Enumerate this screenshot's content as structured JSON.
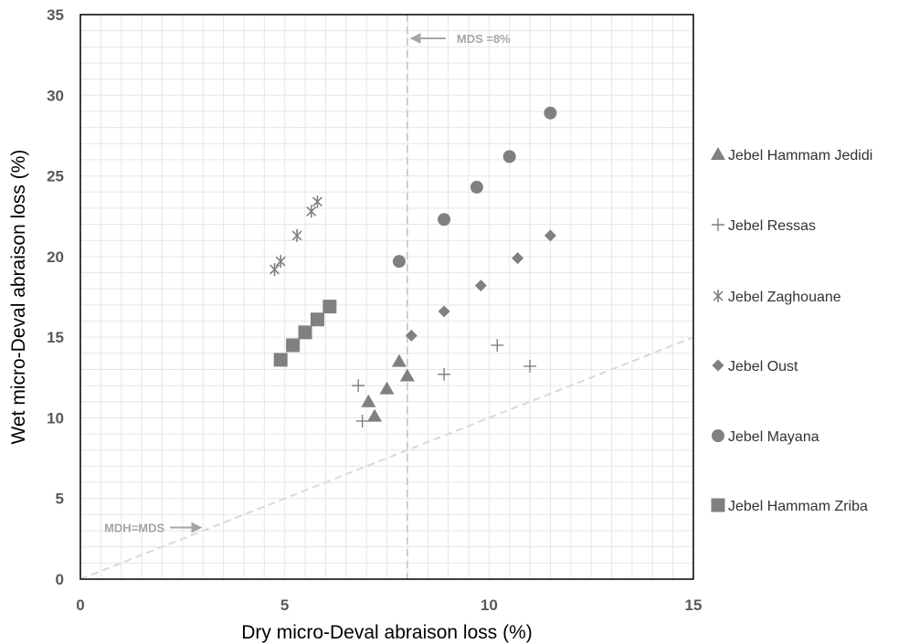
{
  "chart_data": {
    "type": "scatter",
    "xlabel": "Dry micro-Deval abraison loss (%)",
    "ylabel": "Wet micro-Deval abraison loss (%)",
    "xlim": [
      0,
      15
    ],
    "ylim": [
      0,
      35
    ],
    "xticks": [
      0,
      5,
      10,
      15
    ],
    "yticks": [
      0,
      5,
      10,
      15,
      20,
      25,
      30,
      35
    ],
    "grid": true,
    "legend_position": "right",
    "marker_color": "#808080",
    "series": [
      {
        "name": "Jebel Hammam Jedidi",
        "marker": "triangle",
        "points": [
          [
            7.2,
            10.1
          ],
          [
            7.05,
            11.0
          ],
          [
            7.5,
            11.8
          ],
          [
            7.8,
            13.5
          ],
          [
            8.0,
            12.6
          ]
        ]
      },
      {
        "name": "Jebel Ressas",
        "marker": "plus",
        "points": [
          [
            6.9,
            9.8
          ],
          [
            6.8,
            12.0
          ],
          [
            8.9,
            12.7
          ],
          [
            10.2,
            14.5
          ],
          [
            11.0,
            13.2
          ]
        ]
      },
      {
        "name": "Jebel Zaghouane",
        "marker": "asterisk",
        "points": [
          [
            4.75,
            19.2
          ],
          [
            4.9,
            19.7
          ],
          [
            5.3,
            21.3
          ],
          [
            5.65,
            22.8
          ],
          [
            5.8,
            23.4
          ]
        ]
      },
      {
        "name": "Jebel Oust",
        "marker": "diamond",
        "points": [
          [
            8.1,
            15.1
          ],
          [
            8.9,
            16.6
          ],
          [
            9.8,
            18.2
          ],
          [
            10.7,
            19.9
          ],
          [
            11.5,
            21.3
          ]
        ]
      },
      {
        "name": "Jebel Mayana",
        "marker": "circle",
        "points": [
          [
            7.8,
            19.7
          ],
          [
            8.9,
            22.3
          ],
          [
            9.7,
            24.3
          ],
          [
            10.5,
            26.2
          ],
          [
            11.5,
            28.9
          ]
        ]
      },
      {
        "name": "Jebel Hammam Zriba",
        "marker": "square",
        "points": [
          [
            4.9,
            13.6
          ],
          [
            5.2,
            14.5
          ],
          [
            5.5,
            15.3
          ],
          [
            5.8,
            16.1
          ],
          [
            6.1,
            16.9
          ]
        ]
      }
    ],
    "annotations": [
      {
        "text": "MDS =8%",
        "line": "vertical",
        "x": 8
      },
      {
        "text": "MDH=MDS",
        "line": "diagonal",
        "x_start": 0,
        "y_start": 0,
        "x_end": 15,
        "y_end": 15,
        "arrow_to_x": 3,
        "arrow_to_y": 3.2
      }
    ]
  }
}
